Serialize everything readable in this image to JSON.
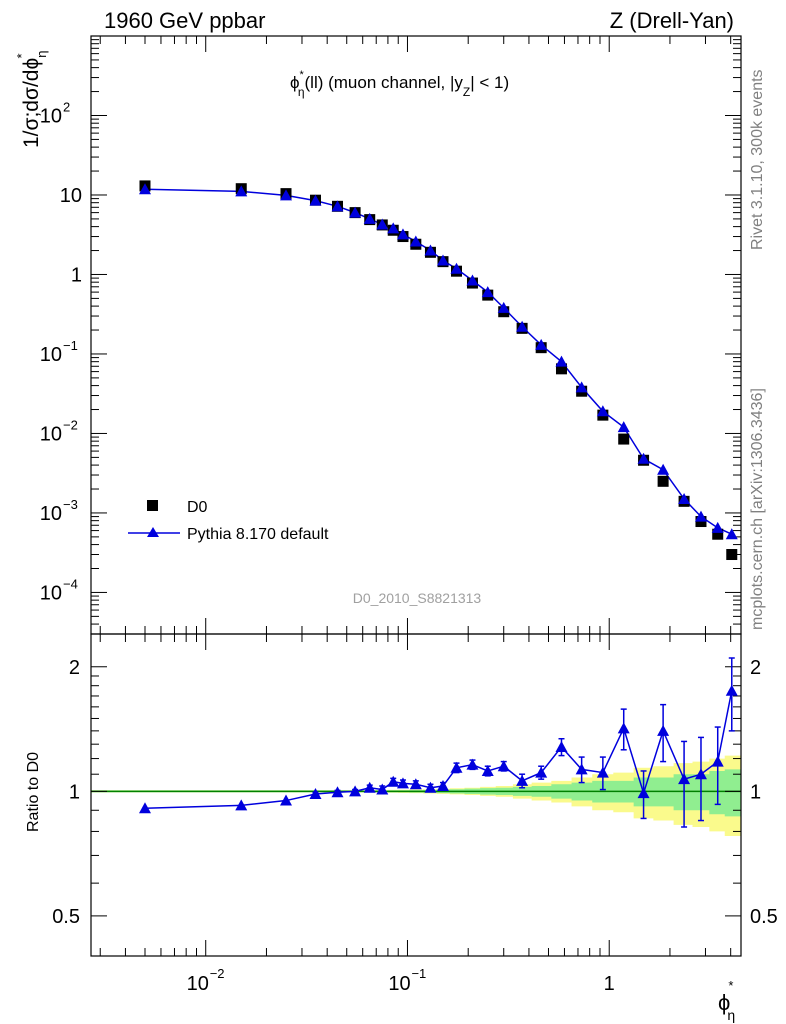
{
  "header": {
    "left": "1960 GeV ppbar",
    "right": "Z (Drell-Yan)"
  },
  "side_labels": {
    "rivet": "Rivet 3.1.10,  300k events",
    "mcplots": "mcplots.cern.ch [arXiv:1306.3436]"
  },
  "plot_title": {
    "main": "ϕ",
    "sup": "*",
    "sub": "η",
    "rest": "(ll) (muon channel, |y",
    "ysub": "Z",
    "end": "| < 1)"
  },
  "watermark": "D0_2010_S8821313",
  "ylabel_top": "1/σ;dσ/dϕ",
  "ylabel_top_sup": "*",
  "ylabel_top_sub": "η",
  "ylabel_bottom": "Ratio to D0",
  "xlabel": "ϕ",
  "xlabel_sup": "*",
  "xlabel_sub": "η",
  "legend": {
    "data_label": "D0",
    "mc_label": "Pythia 8.170 default"
  },
  "colors": {
    "data": "#000000",
    "mc": "#0000dd",
    "band_green": "#90ee90",
    "band_yellow": "#fafa8c",
    "unity_line": "#008000",
    "watermark": "#a0a0a0",
    "side_text": "#808080"
  },
  "chart_data": [
    {
      "type": "scatter",
      "title": "ϕ*η(ll) (muon channel, |yZ| < 1)",
      "xscale": "log",
      "yscale": "log",
      "xlim": [
        0.0027,
        4.5
      ],
      "ylim": [
        3e-05,
        1000
      ],
      "x_ticks": [
        {
          "value": 0.01,
          "base": "10",
          "exp": "−2"
        },
        {
          "value": 0.1,
          "base": "10",
          "exp": "−1"
        },
        {
          "value": 1,
          "base": "1",
          "exp": ""
        }
      ],
      "y_ticks": [
        {
          "value": 100,
          "base": "10",
          "exp": "2"
        },
        {
          "value": 10,
          "base": "10",
          "exp": ""
        },
        {
          "value": 1,
          "base": "1",
          "exp": ""
        },
        {
          "value": 0.1,
          "base": "10",
          "exp": "−1"
        },
        {
          "value": 0.01,
          "base": "10",
          "exp": "−2"
        },
        {
          "value": 0.001,
          "base": "10",
          "exp": "−3"
        },
        {
          "value": 0.0001,
          "base": "10",
          "exp": "−4"
        }
      ],
      "legend_position": "bottom-left",
      "x": [
        0.005,
        0.015,
        0.025,
        0.035,
        0.045,
        0.055,
        0.065,
        0.075,
        0.085,
        0.095,
        0.11,
        0.13,
        0.15,
        0.175,
        0.21,
        0.25,
        0.3,
        0.37,
        0.46,
        0.58,
        0.73,
        0.93,
        1.18,
        1.48,
        1.85,
        2.35,
        2.85,
        3.45,
        4.05
      ],
      "series": [
        {
          "name": "D0",
          "marker": "square",
          "values": [
            13.0,
            12.0,
            10.4,
            8.6,
            7.2,
            6.0,
            4.9,
            4.2,
            3.6,
            3.0,
            2.4,
            1.9,
            1.45,
            1.1,
            0.78,
            0.55,
            0.34,
            0.21,
            0.12,
            0.065,
            0.034,
            0.017,
            0.0085,
            0.0046,
            0.0025,
            0.0014,
            0.00078,
            0.00054,
            0.0003
          ]
        },
        {
          "name": "Pythia 8.170 default",
          "marker": "triangle",
          "values": [
            11.8,
            11.1,
            9.9,
            8.5,
            7.2,
            6.0,
            5.0,
            4.25,
            3.8,
            3.2,
            2.6,
            2.0,
            1.5,
            1.18,
            0.84,
            0.6,
            0.38,
            0.22,
            0.13,
            0.08,
            0.038,
            0.019,
            0.012,
            0.0048,
            0.0035,
            0.0015,
            0.0009,
            0.00065,
            0.00054
          ]
        }
      ]
    },
    {
      "type": "scatter",
      "ylabel": "Ratio to D0",
      "xlabel": "ϕ*η",
      "xscale": "log",
      "yscale": "log",
      "xlim": [
        0.0027,
        4.5
      ],
      "ylim": [
        0.4,
        2.4
      ],
      "y_ticks": [
        {
          "value": 0.5,
          "label": "0.5"
        },
        {
          "value": 1,
          "label": "1"
        },
        {
          "value": 2,
          "label": "2"
        }
      ],
      "ratio": [
        0.91,
        0.925,
        0.95,
        0.985,
        0.995,
        1.0,
        1.02,
        1.01,
        1.055,
        1.045,
        1.04,
        1.02,
        1.03,
        1.14,
        1.16,
        1.12,
        1.15,
        1.06,
        1.11,
        1.28,
        1.13,
        1.11,
        1.42,
        0.99,
        1.4,
        1.07,
        1.1,
        1.18,
        1.75
      ],
      "ratio_err": [
        0.0,
        0.0,
        0.0,
        0.01,
        0.01,
        0.01,
        0.015,
        0.02,
        0.02,
        0.02,
        0.02,
        0.02,
        0.02,
        0.03,
        0.03,
        0.03,
        0.03,
        0.04,
        0.04,
        0.06,
        0.08,
        0.1,
        0.16,
        0.13,
        0.22,
        0.25,
        0.25,
        0.25,
        0.35
      ],
      "band_green_err": [
        0.005,
        0.005,
        0.005,
        0.005,
        0.005,
        0.005,
        0.005,
        0.005,
        0.006,
        0.006,
        0.007,
        0.008,
        0.01,
        0.012,
        0.015,
        0.018,
        0.02,
        0.025,
        0.03,
        0.04,
        0.05,
        0.06,
        0.06,
        0.08,
        0.08,
        0.1,
        0.1,
        0.12,
        0.13
      ],
      "band_yellow_err": [
        0.006,
        0.006,
        0.006,
        0.006,
        0.006,
        0.006,
        0.006,
        0.007,
        0.008,
        0.009,
        0.01,
        0.012,
        0.014,
        0.017,
        0.02,
        0.025,
        0.03,
        0.04,
        0.05,
        0.06,
        0.08,
        0.1,
        0.11,
        0.14,
        0.15,
        0.17,
        0.18,
        0.2,
        0.22
      ],
      "unity_line": 1
    }
  ]
}
